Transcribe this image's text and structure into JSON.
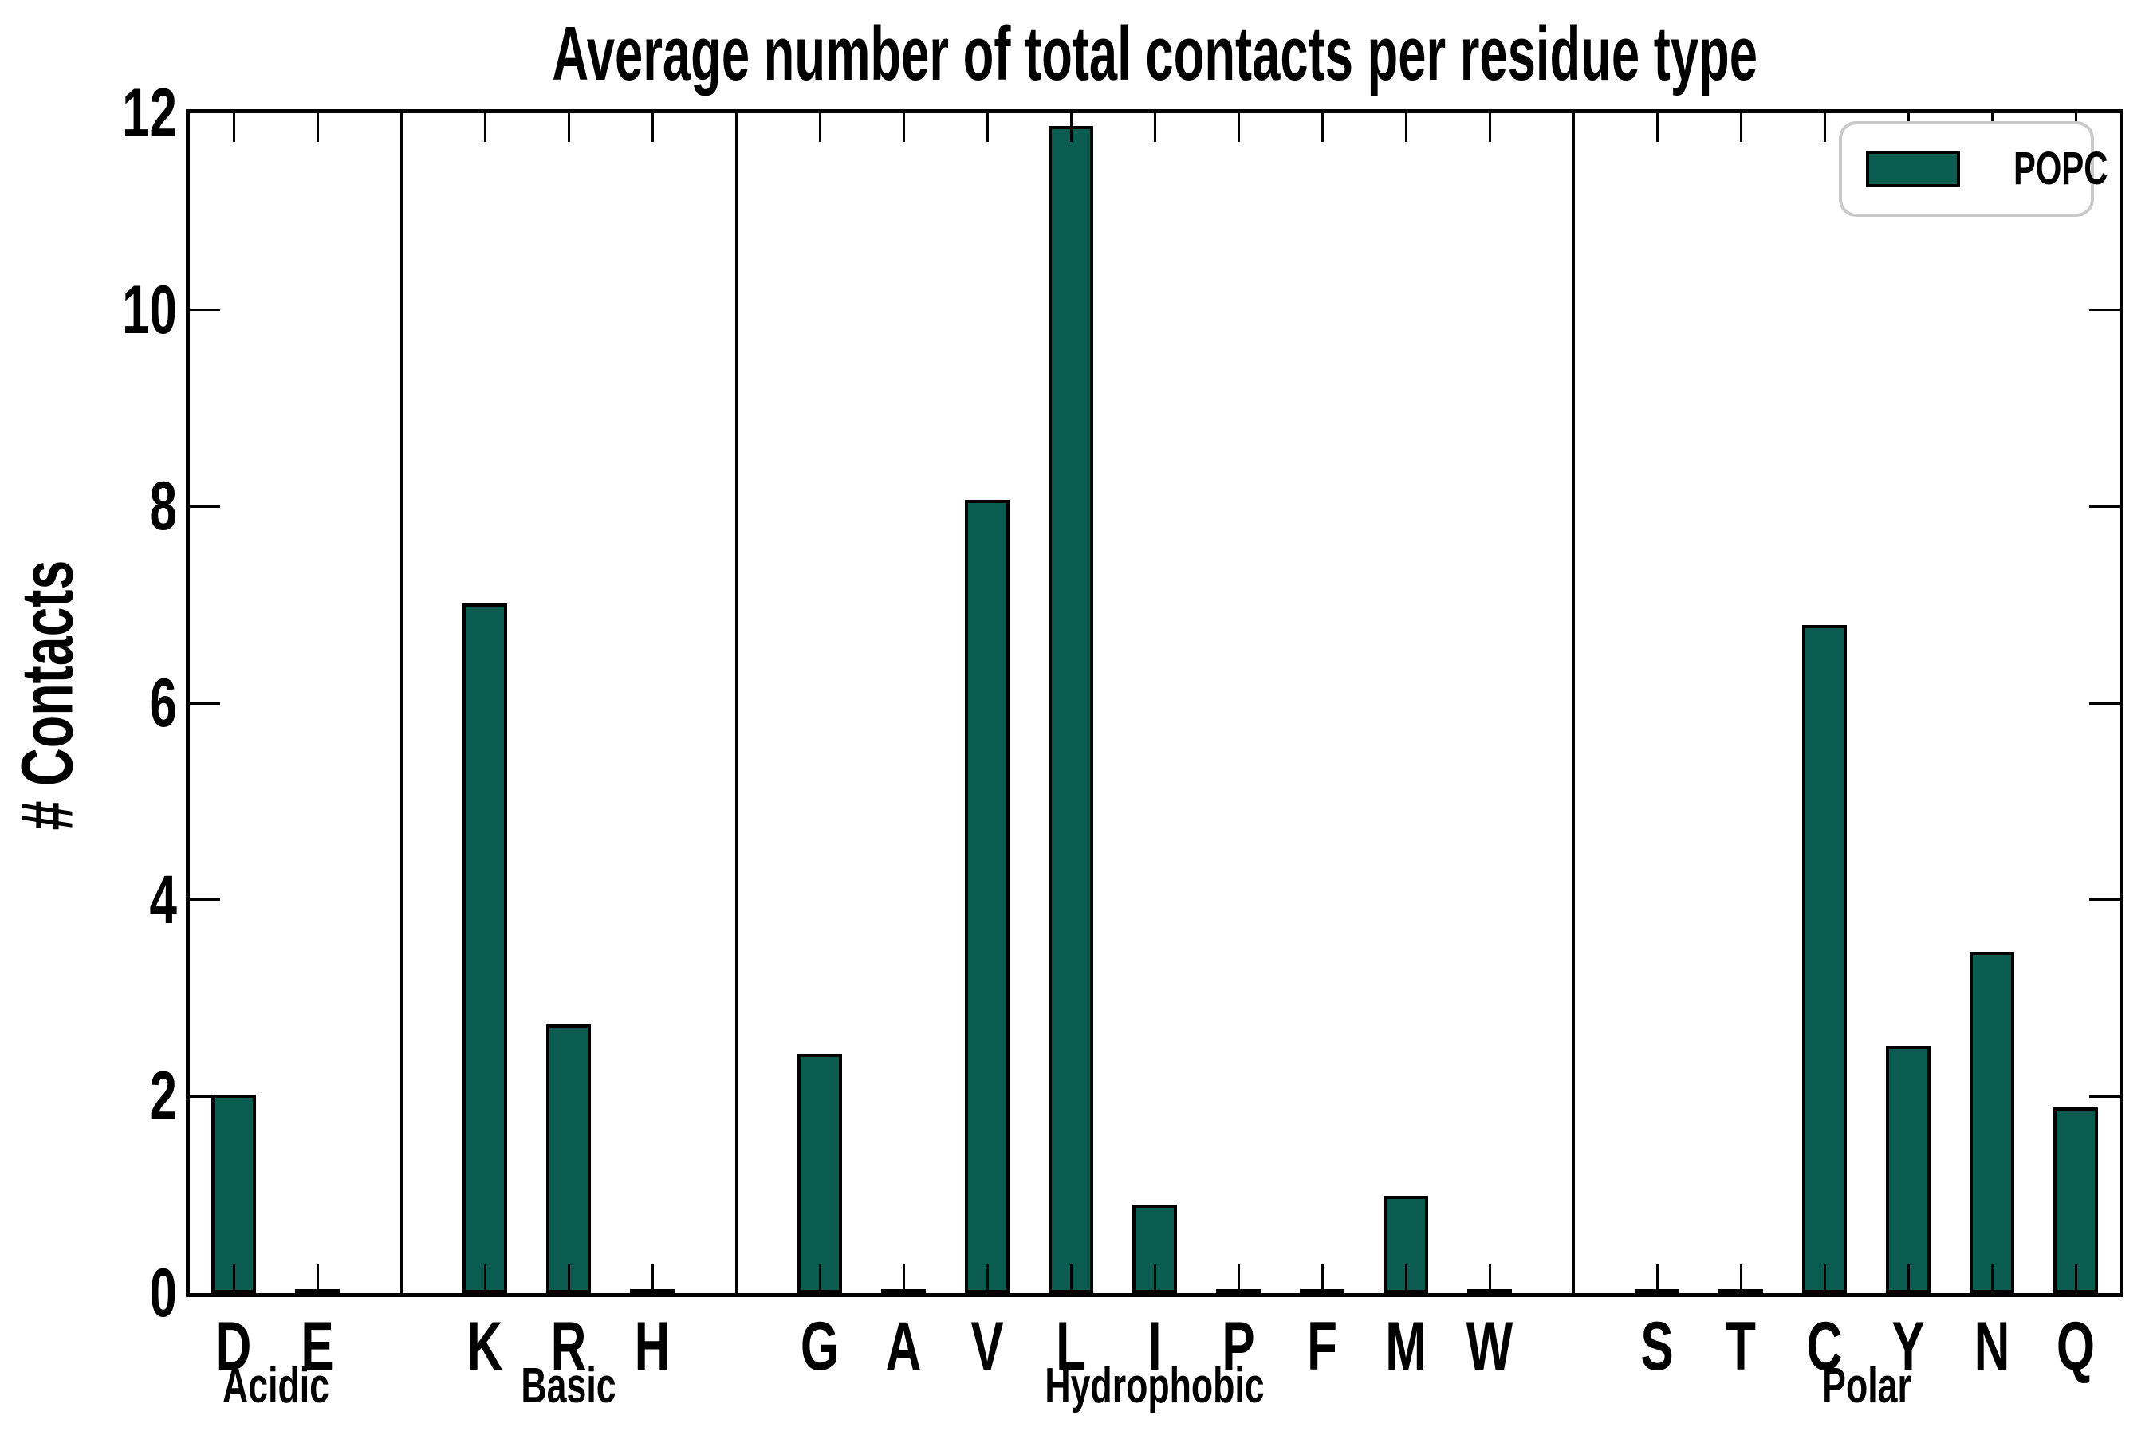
{
  "title": "Average number of total contacts per residue type",
  "ylabel": "# Contacts",
  "legend": {
    "label": "POPC"
  },
  "colors": {
    "bar_fill": "#0a5c50",
    "bar_edge": "#000000",
    "axis": "#000000",
    "legend_border": "#c9c9c9"
  },
  "chart_data": {
    "type": "bar",
    "title": "Average number of total contacts per residue type",
    "xlabel": "",
    "ylabel": "# Contacts",
    "ylim": [
      0,
      12
    ],
    "yticks": [
      0,
      2,
      4,
      6,
      8,
      10,
      12
    ],
    "grid": false,
    "legend_position": "upper right",
    "legend_entries": [
      "POPC"
    ],
    "categories": [
      "D",
      "E",
      "K",
      "R",
      "H",
      "G",
      "A",
      "V",
      "L",
      "I",
      "P",
      "F",
      "M",
      "W",
      "S",
      "T",
      "C",
      "Y",
      "N",
      "Q"
    ],
    "series": [
      {
        "name": "POPC",
        "values": [
          2.0,
          0.02,
          7.0,
          2.72,
          0.02,
          2.42,
          0.02,
          8.05,
          11.85,
          0.88,
          0.02,
          0.02,
          0.97,
          0.02,
          0.02,
          0.02,
          6.78,
          2.5,
          3.45,
          1.87
        ]
      }
    ],
    "groups": [
      {
        "name": "Acidic",
        "categories": [
          "D",
          "E"
        ],
        "values": [
          2.0,
          0.02
        ]
      },
      {
        "name": "Basic",
        "categories": [
          "K",
          "R",
          "H"
        ],
        "values": [
          7.0,
          2.72,
          0.02
        ]
      },
      {
        "name": "Hydrophobic",
        "categories": [
          "G",
          "A",
          "V",
          "L",
          "I",
          "P",
          "F",
          "M",
          "W"
        ],
        "values": [
          2.42,
          0.02,
          8.05,
          11.85,
          0.88,
          0.02,
          0.02,
          0.97,
          0.02
        ]
      },
      {
        "name": "Polar",
        "categories": [
          "S",
          "T",
          "C",
          "Y",
          "N",
          "Q"
        ],
        "values": [
          0.02,
          0.02,
          6.78,
          2.5,
          3.45,
          1.87
        ]
      }
    ]
  }
}
